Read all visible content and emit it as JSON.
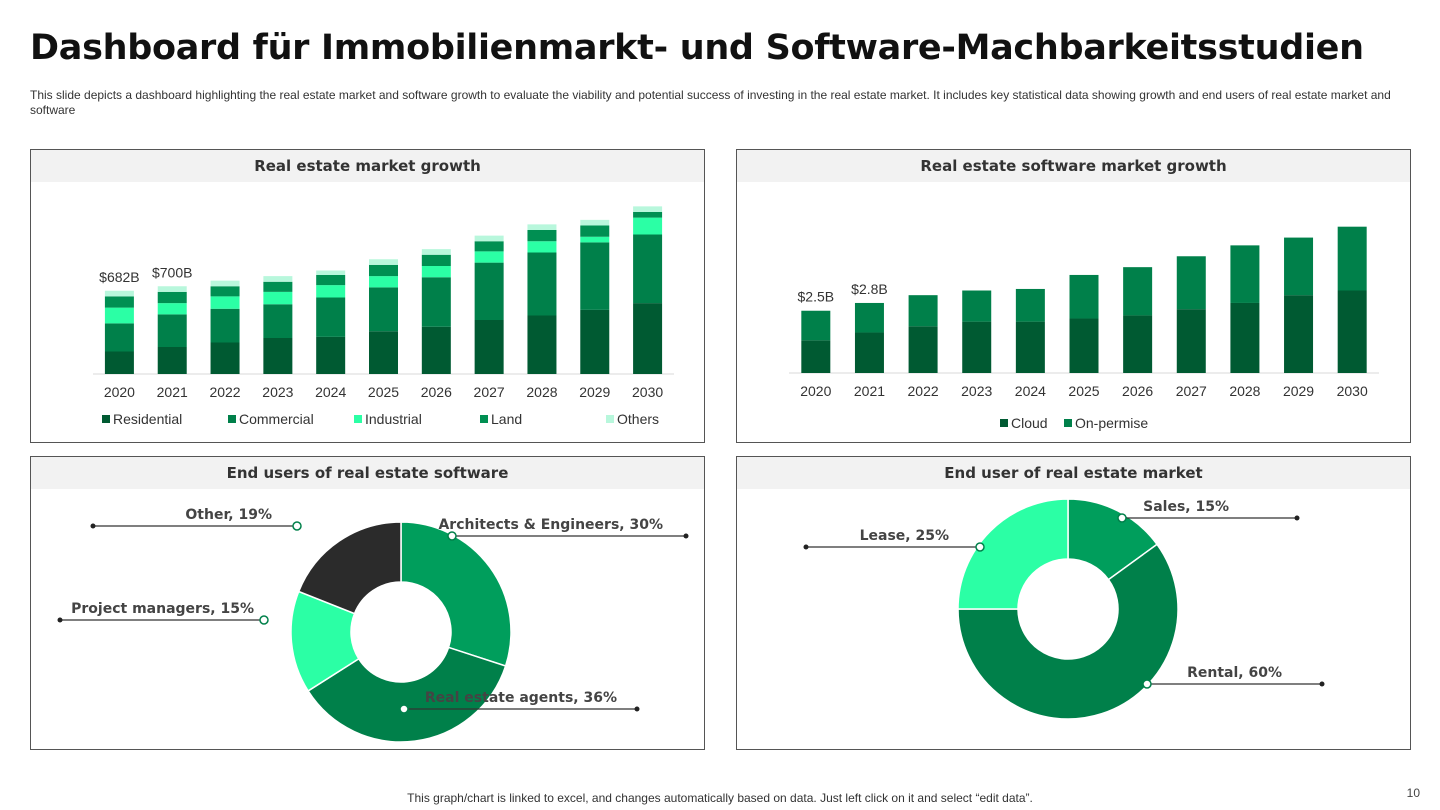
{
  "title": "Dashboard für Immobilienmarkt- und Software-Machbarkeitsstudien",
  "subtitle": "This slide depicts a dashboard highlighting the real estate market and software growth to evaluate the viability and potential success of investing in the real estate market. It includes key statistical data showing growth and end users of real estate market and software",
  "footer": "This graph/chart is linked to excel,  and changes automatically based on data. Just left click on it and select “edit data”.",
  "page_number": "10",
  "colors": {
    "dark_green": "#005a32",
    "green": "#00804a",
    "mid_green": "#009e5c",
    "bright_green": "#2bffa5",
    "pale_green": "#b8f7dc",
    "near_black": "#2b2b2b"
  },
  "chart_data": [
    {
      "type": "bar",
      "stacked": true,
      "title": "Real estate market growth",
      "categories": [
        "2020",
        "2021",
        "2022",
        "2023",
        "2024",
        "2025",
        "2026",
        "2027",
        "2028",
        "2029",
        "2030"
      ],
      "series": [
        {
          "name": "Residential",
          "color": "#005a32",
          "values": [
            20,
            24,
            28,
            32,
            33,
            38,
            42,
            48,
            52,
            57,
            63
          ]
        },
        {
          "name": "Commercial",
          "color": "#00804a",
          "values": [
            25,
            29,
            30,
            30,
            35,
            39,
            44,
            51,
            56,
            60,
            61
          ]
        },
        {
          "name": "Industrial",
          "color": "#2bffa5",
          "values": [
            14,
            10,
            11,
            11,
            11,
            10,
            10,
            10,
            10,
            5,
            15
          ]
        },
        {
          "name": "Land",
          "color": "#008f52",
          "values": [
            10,
            10,
            9,
            9,
            9,
            10,
            10,
            9,
            10,
            10,
            5
          ]
        },
        {
          "name": "Others",
          "color": "#b8f7dc",
          "values": [
            5,
            5,
            5,
            5,
            4,
            5,
            5,
            5,
            5,
            5,
            5
          ]
        }
      ],
      "data_labels": [
        {
          "category": "2020",
          "text": "$682B"
        },
        {
          "category": "2021",
          "text": "$700B"
        }
      ],
      "ylim": [
        0,
        160
      ],
      "legend_position": "bottom"
    },
    {
      "type": "bar",
      "stacked": true,
      "title": "Real estate software market growth",
      "categories": [
        "2020",
        "2021",
        "2022",
        "2023",
        "2024",
        "2025",
        "2026",
        "2027",
        "2028",
        "2029",
        "2030"
      ],
      "series": [
        {
          "name": "Cloud",
          "color": "#005a32",
          "values": [
            21,
            26,
            30,
            33,
            33,
            35,
            37,
            41,
            45,
            50,
            53
          ]
        },
        {
          "name": "On-permise",
          "color": "#00804a",
          "values": [
            19,
            19,
            20,
            20,
            21,
            28,
            31,
            34,
            37,
            37,
            41
          ]
        }
      ],
      "data_labels": [
        {
          "category": "2020",
          "text": "$2.5B"
        },
        {
          "category": "2021",
          "text": "$2.8B"
        }
      ],
      "ylim": [
        0,
        115
      ],
      "legend_position": "bottom"
    },
    {
      "type": "pie",
      "donut": true,
      "title": "End users of real estate software",
      "slices": [
        {
          "label": "Architects  & Engineers, 30%",
          "value": 30,
          "color": "#009e5c"
        },
        {
          "label": "Real estate agents, 36%",
          "value": 36,
          "color": "#00804a"
        },
        {
          "label": "Project managers, 15%",
          "value": 15,
          "color": "#2bffa5"
        },
        {
          "label": "Other, 19%",
          "value": 19,
          "color": "#2b2b2b"
        }
      ]
    },
    {
      "type": "pie",
      "donut": true,
      "title": "End user of real estate market",
      "slices": [
        {
          "label": "Sales, 15%",
          "value": 15,
          "color": "#009e5c"
        },
        {
          "label": "Rental, 60%",
          "value": 60,
          "color": "#00804a"
        },
        {
          "label": "Lease, 25%",
          "value": 25,
          "color": "#2bffa5"
        }
      ]
    }
  ]
}
